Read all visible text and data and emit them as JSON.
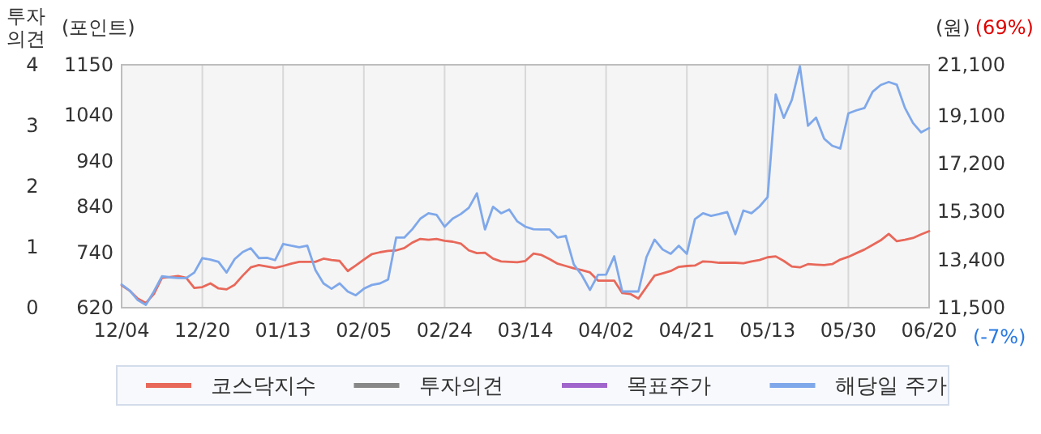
{
  "chart_data": {
    "type": "line",
    "categories": [
      "12/04",
      null,
      null,
      null,
      null,
      null,
      null,
      null,
      null,
      null,
      "12/20",
      null,
      null,
      null,
      null,
      null,
      null,
      null,
      null,
      null,
      "01/13",
      null,
      null,
      null,
      null,
      null,
      null,
      null,
      null,
      null,
      "02/05",
      null,
      null,
      null,
      null,
      null,
      null,
      null,
      null,
      null,
      "02/24",
      null,
      null,
      null,
      null,
      null,
      null,
      null,
      null,
      null,
      "03/14",
      null,
      null,
      null,
      null,
      null,
      null,
      null,
      null,
      null,
      "04/02",
      null,
      null,
      null,
      null,
      null,
      null,
      null,
      null,
      null,
      "04/21",
      null,
      null,
      null,
      null,
      null,
      null,
      null,
      null,
      null,
      "05/13",
      null,
      null,
      null,
      null,
      null,
      null,
      null,
      null,
      null,
      "05/30",
      null,
      null,
      null,
      null,
      null,
      null,
      null,
      null,
      null,
      "06/20"
    ],
    "ylabel": "(포인트)",
    "ylim": [
      620,
      1150
    ],
    "yticks": [
      620,
      740,
      840,
      940,
      1040,
      1150
    ],
    "y2label": "(원)",
    "y2lim": [
      11500,
      21100
    ],
    "y2ticks": [
      {
        "value": 11500,
        "label": "11,500"
      },
      {
        "value": 13400,
        "label": "13,400"
      },
      {
        "value": 15300,
        "label": "15,300"
      },
      {
        "value": 17200,
        "label": "17,200"
      },
      {
        "value": 19100,
        "label": "19,100"
      },
      {
        "value": 21100,
        "label": "21,100"
      }
    ],
    "y3label": "투자의견",
    "y3lim": [
      0,
      4
    ],
    "y3ticks": [
      0,
      1,
      2,
      3,
      4
    ],
    "annotations": [
      "(69%)",
      "(-7%)"
    ],
    "grid": "x",
    "legend": "bottom",
    "marker": "none",
    "line_style": "solid",
    "series": [
      {
        "name": "코스닥지수",
        "color": "#e8685a",
        "axis": "y",
        "values": [
          669,
          657,
          640,
          630,
          650,
          685,
          687,
          689,
          685,
          663,
          665,
          673,
          662,
          660,
          670,
          690,
          708,
          713,
          710,
          707,
          711,
          716,
          720,
          720,
          720,
          727,
          724,
          722,
          700,
          712,
          725,
          737,
          741,
          744,
          745,
          750,
          762,
          770,
          768,
          770,
          766,
          764,
          760,
          745,
          739,
          740,
          727,
          721,
          720,
          719,
          722,
          738,
          735,
          726,
          716,
          711,
          706,
          702,
          697,
          679,
          679,
          679,
          652,
          650,
          640,
          665,
          690,
          695,
          700,
          709,
          711,
          712,
          721,
          720,
          718,
          718,
          718,
          717,
          721,
          724,
          730,
          732,
          722,
          710,
          708,
          715,
          714,
          713,
          715,
          725,
          731,
          739,
          747,
          757,
          767,
          781,
          765,
          768,
          772,
          780,
          787
        ]
      },
      {
        "name": "투자의견",
        "color": "#888888",
        "axis": "y3",
        "values": [
          null,
          null,
          null,
          null,
          null,
          null,
          null,
          null,
          null,
          null,
          null,
          null,
          null,
          null,
          null,
          null,
          null,
          null,
          null,
          null,
          null,
          null,
          null,
          null,
          null,
          null,
          null,
          null,
          null,
          null,
          null,
          null,
          null,
          null,
          null,
          null,
          null,
          null,
          null,
          null,
          null,
          null,
          null,
          null,
          null,
          null,
          null,
          null,
          null,
          null,
          null,
          null,
          null,
          null,
          null,
          null,
          null,
          null,
          null,
          null,
          null,
          null,
          null,
          null,
          null,
          null,
          null,
          null,
          null,
          null,
          null,
          null,
          null,
          null,
          null,
          null,
          null,
          null,
          null,
          null,
          null,
          null,
          null,
          null,
          null,
          null,
          null,
          null,
          null,
          null,
          null,
          null,
          null,
          null,
          null,
          null,
          null,
          null,
          null,
          null,
          null
        ]
      },
      {
        "name": "목표주가",
        "color": "#a066cc",
        "axis": "y2",
        "values": [
          null,
          null,
          null,
          null,
          null,
          null,
          null,
          null,
          null,
          null,
          null,
          null,
          null,
          null,
          null,
          null,
          null,
          null,
          null,
          null,
          null,
          null,
          null,
          null,
          null,
          null,
          null,
          null,
          null,
          null,
          null,
          null,
          null,
          null,
          null,
          null,
          null,
          null,
          null,
          null,
          null,
          null,
          null,
          null,
          null,
          null,
          null,
          null,
          null,
          null,
          null,
          null,
          null,
          null,
          null,
          null,
          null,
          null,
          null,
          null,
          null,
          null,
          null,
          null,
          null,
          null,
          null,
          null,
          null,
          null,
          null,
          null,
          null,
          null,
          null,
          null,
          null,
          null,
          null,
          null,
          null,
          null,
          null,
          null,
          null,
          null,
          null,
          null,
          null,
          null,
          null,
          null,
          null,
          null,
          null,
          null,
          null,
          null,
          null,
          null,
          null
        ]
      },
      {
        "name": "해당일 주가",
        "color": "#7fa8ea",
        "axis": "y2",
        "values": [
          12420,
          12180,
          11800,
          11610,
          12140,
          12740,
          12700,
          12670,
          12670,
          12890,
          13460,
          13400,
          13310,
          12890,
          13420,
          13700,
          13850,
          13460,
          13470,
          13380,
          14020,
          13950,
          13890,
          13950,
          12990,
          12460,
          12250,
          12460,
          12140,
          11990,
          12250,
          12400,
          12460,
          12610,
          14270,
          14270,
          14600,
          15020,
          15230,
          15170,
          14700,
          15020,
          15200,
          15450,
          16020,
          14590,
          15490,
          15230,
          15380,
          14910,
          14700,
          14600,
          14590,
          14590,
          14270,
          14340,
          13210,
          12780,
          12200,
          12800,
          12810,
          13530,
          12140,
          12140,
          12140,
          13500,
          14190,
          13800,
          13630,
          13950,
          13630,
          15000,
          15230,
          15130,
          15200,
          15280,
          14400,
          15340,
          15230,
          15500,
          15870,
          19930,
          19000,
          19710,
          21040,
          18690,
          19010,
          18180,
          17900,
          17790,
          19180,
          19300,
          19390,
          20030,
          20300,
          20420,
          20310,
          19400,
          18800,
          18430,
          18600
        ]
      }
    ]
  }
}
